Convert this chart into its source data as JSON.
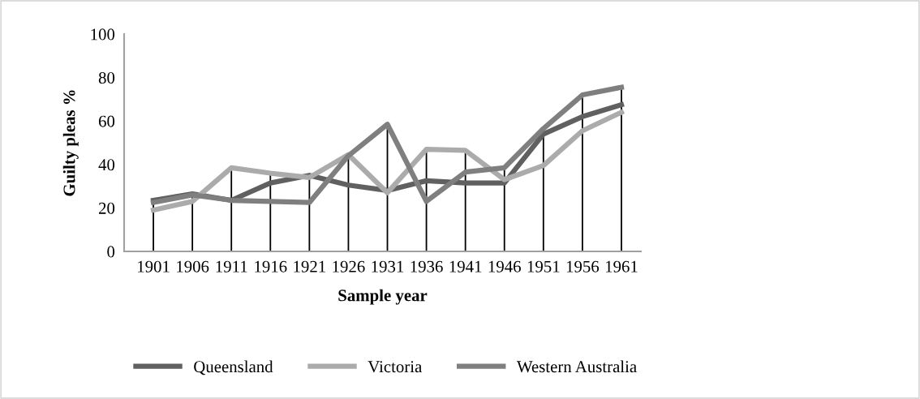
{
  "chart_data": {
    "type": "line",
    "xlabel": "Sample year",
    "ylabel": "Guilty pleas %",
    "categories": [
      "1901",
      "1906",
      "1911",
      "1916",
      "1921",
      "1926",
      "1931",
      "1936",
      "1941",
      "1946",
      "1951",
      "1956",
      "1961"
    ],
    "series": [
      {
        "name": "Queensland",
        "color": "#606060",
        "values": [
          23.5,
          26.5,
          23.5,
          31.5,
          35,
          30.5,
          28,
          32.5,
          31.5,
          31.5,
          54,
          62,
          67.5
        ]
      },
      {
        "name": "Victoria",
        "color": "#ababab",
        "values": [
          19,
          23,
          38.5,
          36,
          34,
          44.5,
          27,
          47,
          46.5,
          33,
          39.5,
          55.5,
          64
        ]
      },
      {
        "name": "Western Australia",
        "color": "#7f7f7f",
        "values": [
          22.5,
          26,
          23.5,
          23,
          22.5,
          44,
          58.5,
          23,
          36.5,
          38.5,
          56.5,
          72,
          75.5
        ]
      }
    ],
    "ylim": [
      0,
      100
    ],
    "yticks": [
      0,
      20,
      40,
      60,
      80,
      100
    ],
    "grid": false,
    "ref_lines": [
      {
        "axis": "x",
        "value": "1901",
        "color": "#000000"
      },
      {
        "axis": "x",
        "value": "1906",
        "color": "#000000"
      },
      {
        "axis": "x",
        "value": "1911",
        "color": "#000000"
      },
      {
        "axis": "x",
        "value": "1916",
        "color": "#000000"
      },
      {
        "axis": "x",
        "value": "1921",
        "color": "#000000"
      },
      {
        "axis": "x",
        "value": "1926",
        "color": "#000000"
      },
      {
        "axis": "x",
        "value": "1931",
        "color": "#000000"
      },
      {
        "axis": "x",
        "value": "1936",
        "color": "#000000"
      },
      {
        "axis": "x",
        "value": "1941",
        "color": "#000000"
      },
      {
        "axis": "x",
        "value": "1946",
        "color": "#000000"
      },
      {
        "axis": "x",
        "value": "1951",
        "color": "#000000"
      },
      {
        "axis": "x",
        "value": "1956",
        "color": "#000000"
      },
      {
        "axis": "x",
        "value": "1961",
        "color": "#000000"
      }
    ],
    "legend": "bottom",
    "marker": "none",
    "line_style": "solid"
  }
}
